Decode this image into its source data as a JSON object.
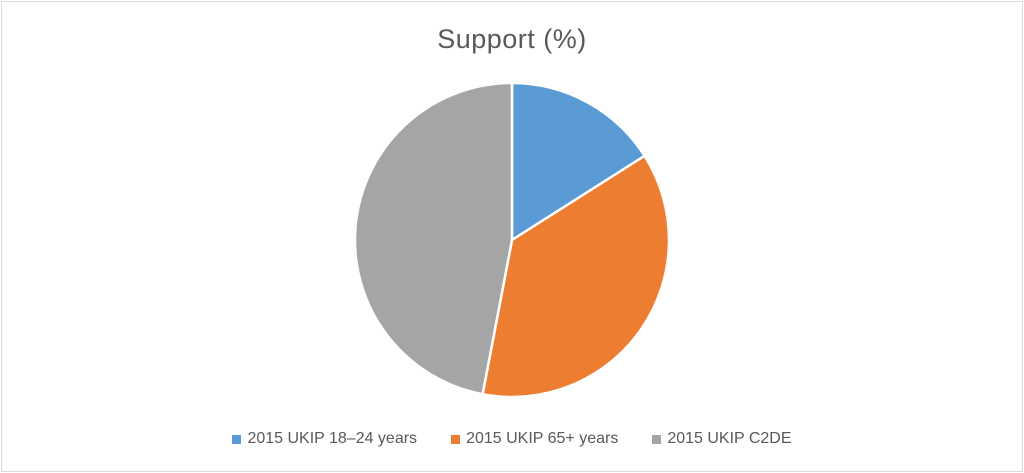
{
  "chart_data": {
    "type": "pie",
    "title": "Support (%)",
    "categories": [
      "2015 UKIP 18–24 years",
      "2015 UKIP 65+ years",
      "2015 UKIP C2DE"
    ],
    "values": [
      16,
      37,
      47
    ],
    "colors": [
      "#5b9bd5",
      "#ed7d31",
      "#a5a5a5"
    ],
    "start_angle_deg": 0,
    "direction": "clockwise",
    "legend_position": "bottom"
  }
}
